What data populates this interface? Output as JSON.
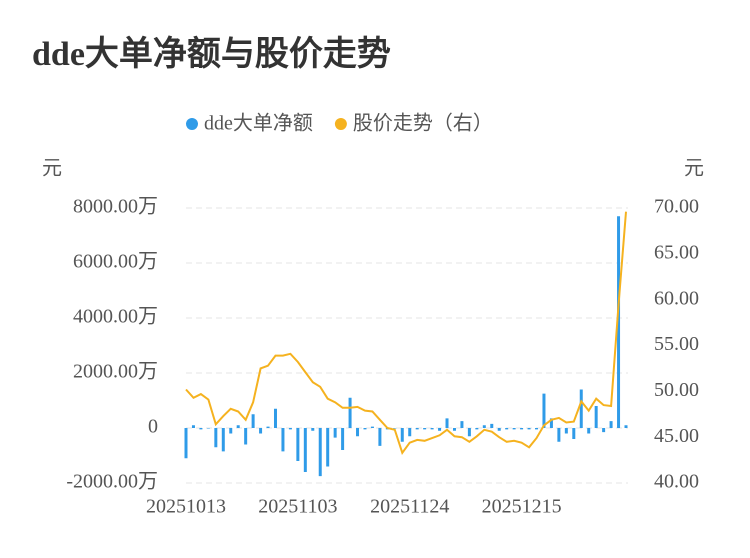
{
  "chart_data": {
    "type": "bar",
    "title": "dde大单净额与股价走势",
    "ylabel": "元",
    "y2label": "元",
    "categories": [
      "20251013",
      null,
      null,
      null,
      null,
      null,
      null,
      null,
      null,
      null,
      null,
      null,
      null,
      null,
      null,
      "20251103",
      null,
      null,
      null,
      null,
      null,
      null,
      null,
      null,
      null,
      null,
      null,
      null,
      null,
      null,
      "20251124",
      null,
      null,
      null,
      null,
      null,
      null,
      null,
      null,
      null,
      null,
      null,
      null,
      null,
      null,
      "20251215",
      null,
      null,
      null,
      null,
      null,
      null,
      null,
      null,
      null,
      null,
      null,
      null,
      null,
      null
    ],
    "series": [
      {
        "name": "dde大单净额",
        "type": "bar",
        "color": "#2f9be8",
        "values": [
          -1100,
          100,
          -50,
          0,
          -700,
          -850,
          -200,
          100,
          -600,
          500,
          -200,
          50,
          700,
          -850,
          -50,
          -1200,
          -1600,
          -100,
          -1750,
          -1400,
          -350,
          -800,
          1100,
          -300,
          -50,
          50,
          -650,
          -50,
          0,
          -500,
          -300,
          -50,
          -50,
          -50,
          -100,
          350,
          -100,
          250,
          -300,
          -50,
          100,
          150,
          -100,
          -50,
          -50,
          -50,
          -50,
          -50,
          1250,
          350,
          -500,
          -200,
          -400,
          1400,
          -200,
          800,
          -150,
          250,
          7700,
          100
        ]
      },
      {
        "name": "股价走势（右）",
        "type": "line",
        "axis": "y2",
        "color": "#f5b21f",
        "values": [
          50.2,
          49.3,
          49.7,
          49.1,
          46.4,
          47.3,
          48.1,
          47.8,
          46.9,
          48.8,
          52.5,
          52.8,
          53.9,
          53.9,
          54.1,
          53.2,
          52.1,
          51.0,
          50.5,
          49.2,
          48.8,
          48.2,
          48.2,
          48.3,
          47.9,
          47.8,
          46.9,
          46.0,
          45.8,
          43.3,
          44.4,
          44.7,
          44.6,
          44.9,
          45.2,
          45.8,
          45.1,
          45.0,
          44.5,
          45.1,
          45.8,
          45.6,
          45.0,
          44.5,
          44.6,
          44.4,
          43.9,
          44.9,
          46.3,
          46.9,
          47.1,
          46.6,
          46.7,
          48.9,
          47.9,
          49.2,
          48.5,
          48.4,
          59.4,
          69.6
        ]
      }
    ],
    "ylim": [
      -2000,
      8000
    ],
    "yticks": [
      {
        "value": -2000,
        "label": "-2000.00万"
      },
      0,
      {
        "value": 2000,
        "label": "2000.00万"
      },
      {
        "value": 4000,
        "label": "4000.00万"
      },
      {
        "value": 6000,
        "label": "6000.00万"
      },
      {
        "value": 8000,
        "label": "8000.00万"
      }
    ],
    "y2lim": [
      40,
      70
    ],
    "y2ticks": [
      {
        "value": 40,
        "label": "40.00"
      },
      {
        "value": 45,
        "label": "45.00"
      },
      {
        "value": 50,
        "label": "50.00"
      },
      {
        "value": 55,
        "label": "55.00"
      },
      {
        "value": 60,
        "label": "60.00"
      },
      {
        "value": 65,
        "label": "65.00"
      },
      {
        "value": 70,
        "label": "70.00"
      }
    ],
    "grid": true,
    "legend": "top"
  }
}
